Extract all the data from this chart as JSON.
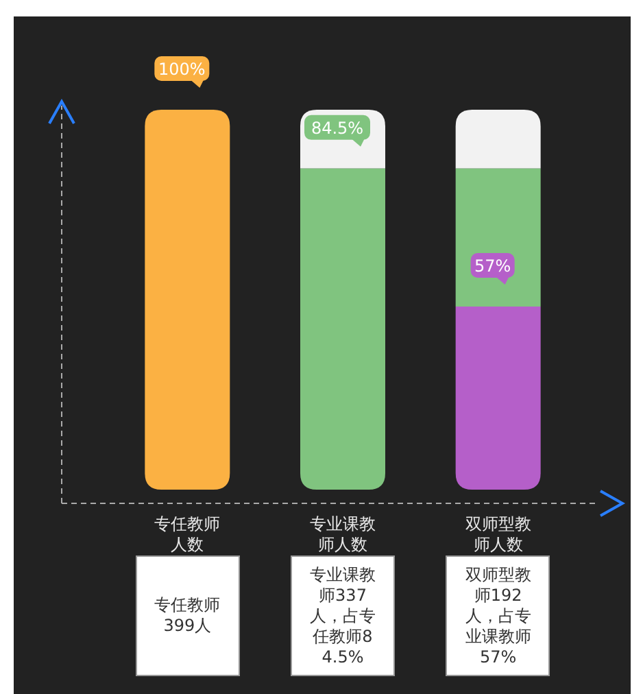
{
  "chart_data": {
    "type": "bar",
    "stacked": true,
    "tick_labels": "x",
    "categories": [
      "专任教师人数",
      "专业课教师人数",
      "双师型教师人数"
    ],
    "series": [
      {
        "color": "#b55fc9",
        "values": [
          null,
          null,
          48.2
        ]
      },
      {
        "color": "#fbb143",
        "values": [
          100,
          null,
          null
        ],
        "value_labels": [
          "100%",
          null,
          null
        ]
      },
      {
        "color": "#80c47f",
        "values": [
          null,
          84.5,
          36.3
        ],
        "value_labels": [
          null,
          "84.5%",
          null
        ]
      },
      {
        "color": "#f2f2f2",
        "values": [
          null,
          15.5,
          15.5
        ]
      }
    ],
    "annotations": [
      {
        "text": "57%",
        "x": "双师型教师人数",
        "y": 48.2
      },
      "专任教师399人",
      "专业课教师337人，占专任教师84.5%",
      "双师型教师192人，占专业课教师57%"
    ]
  }
}
